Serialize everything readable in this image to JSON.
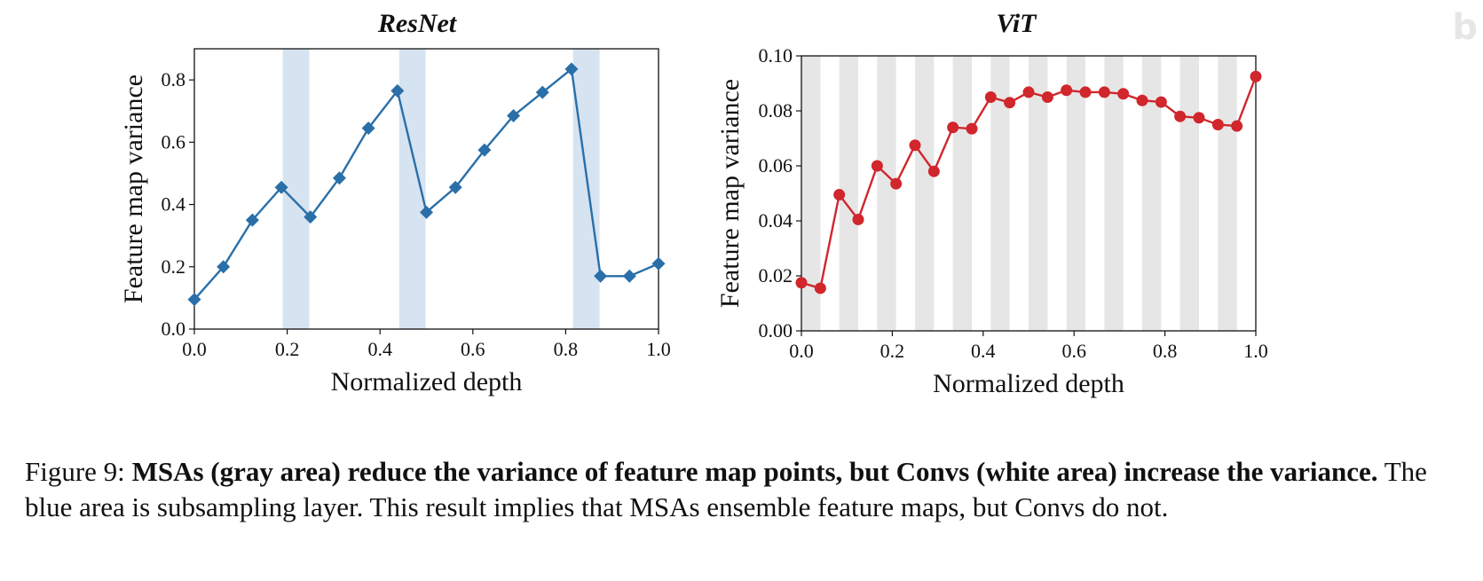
{
  "chart_data": [
    {
      "type": "line",
      "title": "ResNet",
      "xlabel": "Normalized depth",
      "ylabel": "Feature map variance",
      "xlim": [
        0.0,
        1.0
      ],
      "ylim": [
        0.0,
        0.9
      ],
      "xticks": [
        "0.0",
        "0.2",
        "0.4",
        "0.6",
        "0.8",
        "1.0"
      ],
      "yticks": [
        "0.0",
        "0.2",
        "0.4",
        "0.6",
        "0.8"
      ],
      "marker": "diamond",
      "line_color": "#2a6fa8",
      "shade_color": "#d6e3f1",
      "shaded_regions": [
        [
          0.1905,
          0.2476
        ],
        [
          0.4413,
          0.4984
        ],
        [
          0.8159,
          0.873
        ]
      ],
      "x": [
        0.0,
        0.0625,
        0.125,
        0.1875,
        0.25,
        0.3125,
        0.375,
        0.4375,
        0.5,
        0.5625,
        0.625,
        0.6875,
        0.75,
        0.8125,
        0.875,
        0.9375,
        1.0
      ],
      "y": [
        0.095,
        0.2,
        0.35,
        0.455,
        0.36,
        0.485,
        0.645,
        0.765,
        0.375,
        0.455,
        0.575,
        0.685,
        0.76,
        0.835,
        0.17,
        0.17,
        0.21
      ]
    },
    {
      "type": "line",
      "title": "ViT",
      "xlabel": "Normalized depth",
      "ylabel": "Feature map variance",
      "xlim": [
        0.0,
        1.0
      ],
      "ylim": [
        0.0,
        0.1
      ],
      "xticks": [
        "0.0",
        "0.2",
        "0.4",
        "0.6",
        "0.8",
        "1.0"
      ],
      "yticks": [
        "0.00",
        "0.02",
        "0.04",
        "0.06",
        "0.08",
        "0.10"
      ],
      "marker": "circle",
      "line_color": "#d0262c",
      "shade_color": "#e6e6e6",
      "shaded_regions": [
        [
          0.0,
          0.042
        ],
        [
          0.0833,
          0.125
        ],
        [
          0.1667,
          0.2083
        ],
        [
          0.25,
          0.2917
        ],
        [
          0.3333,
          0.375
        ],
        [
          0.4167,
          0.4583
        ],
        [
          0.5,
          0.5417
        ],
        [
          0.5833,
          0.625
        ],
        [
          0.6667,
          0.7083
        ],
        [
          0.75,
          0.7917
        ],
        [
          0.8333,
          0.875
        ],
        [
          0.9167,
          0.9583
        ]
      ],
      "x": [
        0.0,
        0.0417,
        0.0833,
        0.125,
        0.1667,
        0.2083,
        0.25,
        0.2917,
        0.3333,
        0.375,
        0.4167,
        0.4583,
        0.5,
        0.5417,
        0.5833,
        0.625,
        0.6667,
        0.7083,
        0.75,
        0.7917,
        0.8333,
        0.875,
        0.9167,
        0.9583,
        1.0
      ],
      "y": [
        0.0175,
        0.0155,
        0.0495,
        0.0405,
        0.06,
        0.0535,
        0.0675,
        0.058,
        0.074,
        0.0735,
        0.085,
        0.083,
        0.0868,
        0.085,
        0.0875,
        0.0868,
        0.0868,
        0.0862,
        0.0838,
        0.0832,
        0.078,
        0.0775,
        0.075,
        0.0745,
        0.0925
      ]
    }
  ],
  "caption": {
    "prefix": "Figure 9: ",
    "bold": "MSAs (gray area) reduce the variance of feature map points, but Convs (white area) increase the variance.",
    "rest": " The blue area is subsampling layer. This result implies that MSAs ensemble feature maps, but Convs do not."
  },
  "watermark": "b"
}
